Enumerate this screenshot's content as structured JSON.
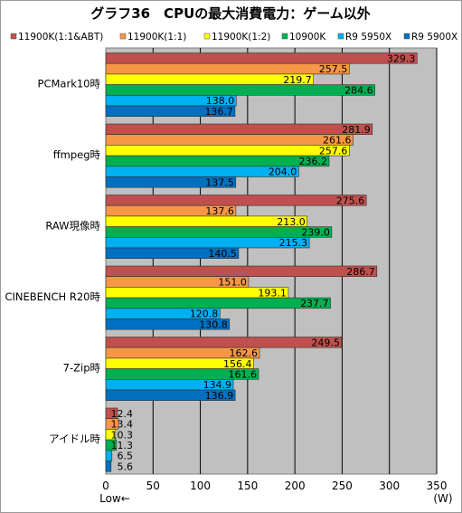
{
  "chart_data": {
    "type": "bar",
    "orientation": "horizontal",
    "title": "グラフ36　CPUの最大消費電力：ゲーム以外",
    "categories": [
      "PCMark10時",
      "ffmpeg時",
      "RAW現像時",
      "CINEBENCH R20時",
      "7-Zip時",
      "アイドル時"
    ],
    "series": [
      {
        "name": "11900K(1:1&ABT)",
        "color": "#c0504d",
        "values": [
          329.3,
          281.9,
          275.6,
          286.7,
          249.5,
          12.4
        ]
      },
      {
        "name": "11900K(1:1)",
        "color": "#f79646",
        "values": [
          257.5,
          261.6,
          137.6,
          151.0,
          162.6,
          13.4
        ]
      },
      {
        "name": "11900K(1:2)",
        "color": "#ffff00",
        "values": [
          219.7,
          257.6,
          213.0,
          193.1,
          156.4,
          10.3
        ]
      },
      {
        "name": "10900K",
        "color": "#00b050",
        "values": [
          284.6,
          236.2,
          239.0,
          237.7,
          161.6,
          11.3
        ]
      },
      {
        "name": "R9 5950X",
        "color": "#00b0f0",
        "values": [
          138.0,
          204.0,
          215.3,
          120.8,
          134.9,
          6.5
        ]
      },
      {
        "name": "R9 5900X",
        "color": "#0070c0",
        "values": [
          136.7,
          137.5,
          140.5,
          130.8,
          136.9,
          5.6
        ]
      }
    ],
    "xlim": [
      0,
      350
    ],
    "xticks": [
      0,
      50,
      100,
      150,
      200,
      250,
      300,
      350
    ],
    "xlabel": "Low←",
    "unit": "(W)",
    "grid": true,
    "legend": "top",
    "background": "#c0c0c0",
    "label_decimals": 1
  }
}
